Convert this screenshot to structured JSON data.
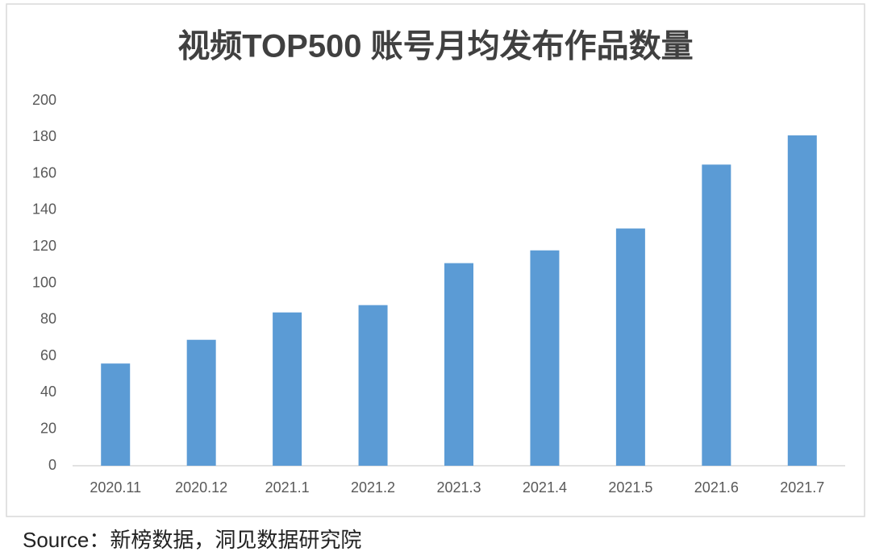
{
  "chart_data": {
    "type": "bar",
    "title": "视频TOP500 账号月均发布作品数量",
    "categories": [
      "2020.11",
      "2020.12",
      "2021.1",
      "2021.2",
      "2021.3",
      "2021.4",
      "2021.5",
      "2021.6",
      "2021.7"
    ],
    "values": [
      56,
      69,
      84,
      88,
      111,
      118,
      130,
      165,
      181
    ],
    "color": "#5b9bd5",
    "ylim": [
      0,
      200
    ],
    "yticks": [
      0,
      20,
      40,
      60,
      80,
      100,
      120,
      140,
      160,
      180,
      200
    ],
    "grid": false,
    "source": "Source：新榜数据，洞见数据研究院"
  }
}
